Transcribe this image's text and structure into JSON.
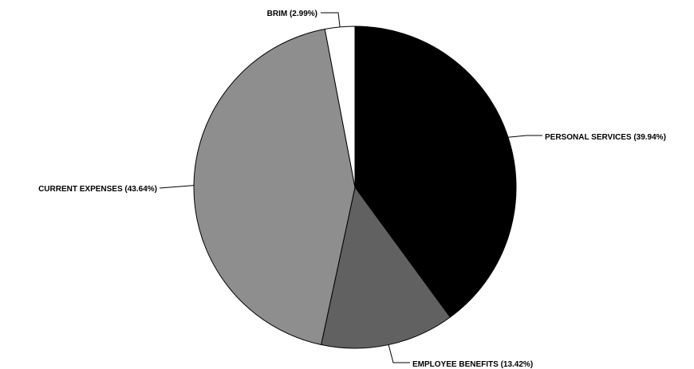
{
  "chart_data": {
    "type": "pie",
    "title": "",
    "slices": [
      {
        "name": "PERSONAL SERVICES",
        "value": 39.94,
        "label": "PERSONAL SERVICES (39.94%)",
        "color": "#000000"
      },
      {
        "name": "EMPLOYEE BENEFITS",
        "value": 13.42,
        "label": "EMPLOYEE BENEFITS (13.42%)",
        "color": "#616161"
      },
      {
        "name": "CURRENT EXPENSES",
        "value": 43.64,
        "label": "CURRENT EXPENSES (43.64%)",
        "color": "#8e8e8e"
      },
      {
        "name": "BRIM",
        "value": 2.99,
        "label": "BRIM (2.99%)",
        "color": "#ffffff"
      }
    ],
    "start_angle": "12 o'clock",
    "direction": "clockwise",
    "legend": "none"
  }
}
